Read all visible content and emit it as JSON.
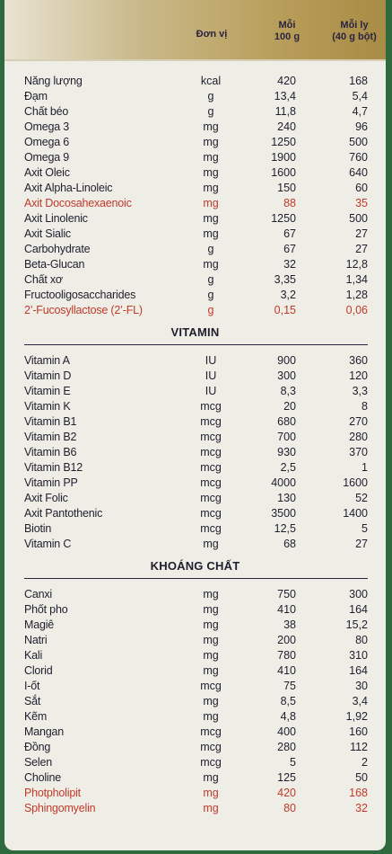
{
  "header": {
    "unit": "Đơn vị",
    "per100_line1": "Mỗi",
    "per100_line2": "100 g",
    "perglass_line1": "Mỗi ly",
    "perglass_line2": "(40 g bột)"
  },
  "sections": [
    {
      "title": "",
      "rows": [
        {
          "name": "Năng lượng",
          "unit": "kcal",
          "per100": "420",
          "perglass": "168"
        },
        {
          "name": "Đạm",
          "unit": "g",
          "per100": "13,4",
          "perglass": "5,4"
        },
        {
          "name": "Chất béo",
          "unit": "g",
          "per100": "11,8",
          "perglass": "4,7"
        },
        {
          "name": "Omega 3",
          "unit": "mg",
          "per100": "240",
          "perglass": "96"
        },
        {
          "name": "Omega 6",
          "unit": "mg",
          "per100": "1250",
          "perglass": "500"
        },
        {
          "name": "Omega 9",
          "unit": "mg",
          "per100": "1900",
          "perglass": "760"
        },
        {
          "name": "Axit Oleic",
          "unit": "mg",
          "per100": "1600",
          "perglass": "640"
        },
        {
          "name": "Axit Alpha-Linoleic",
          "unit": "mg",
          "per100": "150",
          "perglass": "60"
        },
        {
          "name": "Axit Docosahexaenoic",
          "unit": "mg",
          "per100": "88",
          "perglass": "35",
          "highlight": true
        },
        {
          "name": "Axit Linolenic",
          "unit": "mg",
          "per100": "1250",
          "perglass": "500"
        },
        {
          "name": "Axit Sialic",
          "unit": "mg",
          "per100": "67",
          "perglass": "27"
        },
        {
          "name": "Carbohydrate",
          "unit": "g",
          "per100": "67",
          "perglass": "27"
        },
        {
          "name": "Beta-Glucan",
          "unit": "mg",
          "per100": "32",
          "perglass": "12,8"
        },
        {
          "name": "Chất xơ",
          "unit": "g",
          "per100": "3,35",
          "perglass": "1,34"
        },
        {
          "name": "Fructooligosaccharides",
          "unit": "g",
          "per100": "3,2",
          "perglass": "1,28"
        },
        {
          "name": "2’-Fucosyllactose (2’-FL)",
          "unit": "g",
          "per100": "0,15",
          "perglass": "0,06",
          "highlight": true
        }
      ]
    },
    {
      "title": "VITAMIN",
      "rows": [
        {
          "name": "Vitamin A",
          "unit": "IU",
          "per100": "900",
          "perglass": "360"
        },
        {
          "name": "Vitamin D",
          "unit": "IU",
          "per100": "300",
          "perglass": "120"
        },
        {
          "name": "Vitamin E",
          "unit": "IU",
          "per100": "8,3",
          "perglass": "3,3"
        },
        {
          "name": "Vitamin K",
          "unit": "mcg",
          "per100": "20",
          "perglass": "8"
        },
        {
          "name": "Vitamin B1",
          "unit": "mcg",
          "per100": "680",
          "perglass": "270"
        },
        {
          "name": "Vitamin B2",
          "unit": "mcg",
          "per100": "700",
          "perglass": "280"
        },
        {
          "name": "Vitamin B6",
          "unit": "mcg",
          "per100": "930",
          "perglass": "370"
        },
        {
          "name": "Vitamin B12",
          "unit": "mcg",
          "per100": "2,5",
          "perglass": "1"
        },
        {
          "name": "Vitamin PP",
          "unit": "mcg",
          "per100": "4000",
          "perglass": "1600"
        },
        {
          "name": "Axit Folic",
          "unit": "mcg",
          "per100": "130",
          "perglass": "52"
        },
        {
          "name": "Axit Pantothenic",
          "unit": "mcg",
          "per100": "3500",
          "perglass": "1400"
        },
        {
          "name": "Biotin",
          "unit": "mcg",
          "per100": "12,5",
          "perglass": "5"
        },
        {
          "name": "Vitamin C",
          "unit": "mg",
          "per100": "68",
          "perglass": "27"
        }
      ]
    },
    {
      "title": "KHOÁNG CHẤT",
      "rows": [
        {
          "name": "Canxi",
          "unit": "mg",
          "per100": "750",
          "perglass": "300"
        },
        {
          "name": "Phốt pho",
          "unit": "mg",
          "per100": "410",
          "perglass": "164"
        },
        {
          "name": "Magiê",
          "unit": "mg",
          "per100": "38",
          "perglass": "15,2"
        },
        {
          "name": "Natri",
          "unit": "mg",
          "per100": "200",
          "perglass": "80"
        },
        {
          "name": "Kali",
          "unit": "mg",
          "per100": "780",
          "perglass": "310"
        },
        {
          "name": "Clorid",
          "unit": "mg",
          "per100": "410",
          "perglass": "164"
        },
        {
          "name": "I-ốt",
          "unit": "mcg",
          "per100": "75",
          "perglass": "30"
        },
        {
          "name": "Sắt",
          "unit": "mg",
          "per100": "8,5",
          "perglass": "3,4"
        },
        {
          "name": "Kẽm",
          "unit": "mg",
          "per100": "4,8",
          "perglass": "1,92"
        },
        {
          "name": "Mangan",
          "unit": "mcg",
          "per100": "400",
          "perglass": "160"
        },
        {
          "name": "Đồng",
          "unit": "mcg",
          "per100": "280",
          "perglass": "112"
        },
        {
          "name": "Selen",
          "unit": "mcg",
          "per100": "5",
          "perglass": "2"
        },
        {
          "name": "Choline",
          "unit": "mg",
          "per100": "125",
          "perglass": "50"
        },
        {
          "name": "Photpholipit",
          "unit": "mg",
          "per100": "420",
          "perglass": "168",
          "highlight": true
        },
        {
          "name": "Sphingomyelin",
          "unit": "mg",
          "per100": "80",
          "perglass": "32",
          "highlight": true
        }
      ]
    }
  ]
}
